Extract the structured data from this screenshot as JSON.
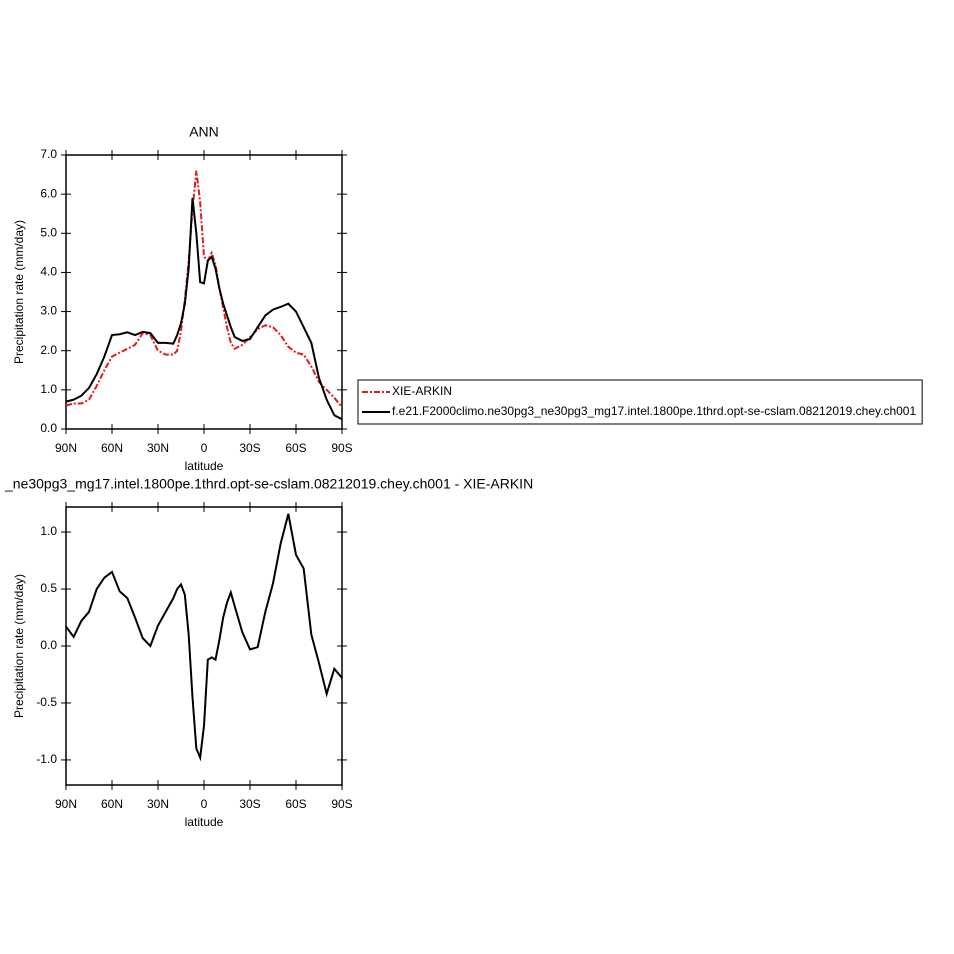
{
  "chart_data": [
    {
      "type": "line",
      "title": "ANN",
      "xlabel": "latitude",
      "ylabel": "Precipitation rate (mm/day)",
      "x": [
        90,
        85,
        80,
        75,
        70,
        65,
        60,
        55,
        50,
        45,
        40,
        35,
        30,
        25,
        20,
        17.5,
        15,
        12.5,
        10,
        7.5,
        5,
        2.5,
        0,
        -2.5,
        -5,
        -7.5,
        -10,
        -12.5,
        -15,
        -17.5,
        -20,
        -25,
        -30,
        -35,
        -40,
        -45,
        -50,
        -55,
        -60,
        -65,
        -70,
        -75,
        -80,
        -85,
        -90
      ],
      "series": [
        {
          "name": "XIE-ARKIN",
          "color": "#e41a1c",
          "line_style": "dashdot",
          "values": [
            0.6,
            0.65,
            0.65,
            0.75,
            1.1,
            1.5,
            1.85,
            1.95,
            2.05,
            2.15,
            2.45,
            2.4,
            2.0,
            1.9,
            1.9,
            2.0,
            2.5,
            3.3,
            4.3,
            5.6,
            6.6,
            5.8,
            4.4,
            4.3,
            4.5,
            4.2,
            3.6,
            3.1,
            2.6,
            2.2,
            2.05,
            2.15,
            2.35,
            2.55,
            2.65,
            2.6,
            2.4,
            2.1,
            1.95,
            1.9,
            1.6,
            1.2,
            1.0,
            0.8,
            0.55
          ]
        },
        {
          "name": "f.e21.F2000climo.ne30pg3_ne30pg3_mg17.intel.1800pe.1thrd.opt-se-cslam.08212019.chey.ch001",
          "color": "#000000",
          "line_style": "solid",
          "values": [
            0.7,
            0.75,
            0.85,
            1.05,
            1.4,
            1.85,
            2.4,
            2.42,
            2.47,
            2.4,
            2.48,
            2.45,
            2.2,
            2.2,
            2.18,
            2.4,
            2.7,
            3.2,
            4.1,
            5.9,
            5.0,
            3.75,
            3.72,
            4.3,
            4.4,
            4.1,
            3.6,
            3.2,
            2.9,
            2.6,
            2.35,
            2.25,
            2.3,
            2.6,
            2.9,
            3.05,
            3.12,
            3.2,
            3.0,
            2.6,
            2.2,
            1.3,
            0.75,
            0.35,
            0.25
          ]
        }
      ],
      "xlim": [
        90,
        -90
      ],
      "xticks": [
        {
          "value": 90,
          "label": "90N"
        },
        {
          "value": 60,
          "label": "60N"
        },
        {
          "value": 30,
          "label": "30N"
        },
        0,
        {
          "value": -30,
          "label": "30S"
        },
        {
          "value": -60,
          "label": "60S"
        },
        {
          "value": -90,
          "label": "90S"
        }
      ],
      "ylim": [
        0,
        7
      ],
      "yticks": [
        {
          "value": 0,
          "label": "0.0"
        },
        {
          "value": 1,
          "label": "1.0"
        },
        {
          "value": 2,
          "label": "2.0"
        },
        {
          "value": 3,
          "label": "3.0"
        },
        {
          "value": 4,
          "label": "4.0"
        },
        {
          "value": 5,
          "label": "5.0"
        },
        {
          "value": 6,
          "label": "6.0"
        },
        {
          "value": 7,
          "label": "7.0"
        }
      ],
      "legend": "right"
    },
    {
      "type": "line",
      "title": "_ne30pg3_mg17.intel.1800pe.1thrd.opt-se-cslam.08212019.chey.ch001 - XIE-ARKIN",
      "xlabel": "latitude",
      "ylabel": "Precipitation rate (mm/day)",
      "x": [
        90,
        85,
        80,
        75,
        70,
        65,
        60,
        55,
        50,
        45,
        40,
        35,
        30,
        25,
        20,
        17.5,
        15,
        12.5,
        10,
        7.5,
        5,
        2.5,
        0,
        -2.5,
        -5,
        -7.5,
        -10,
        -12.5,
        -15,
        -17.5,
        -20,
        -25,
        -30,
        -35,
        -40,
        -45,
        -50,
        -55,
        -60,
        -65,
        -70,
        -75,
        -80,
        -85,
        -90
      ],
      "color": "#000000",
      "values": [
        0.17,
        0.08,
        0.22,
        0.3,
        0.5,
        0.6,
        0.65,
        0.48,
        0.42,
        0.25,
        0.07,
        0.0,
        0.18,
        0.3,
        0.42,
        0.5,
        0.54,
        0.45,
        0.1,
        -0.45,
        -0.9,
        -0.98,
        -0.7,
        -0.12,
        -0.1,
        -0.12,
        0.05,
        0.25,
        0.38,
        0.47,
        0.35,
        0.12,
        -0.03,
        -0.01,
        0.3,
        0.55,
        0.9,
        1.16,
        0.8,
        0.68,
        0.1,
        -0.15,
        -0.42,
        -0.2,
        -0.28
      ],
      "xlim": [
        90,
        -90
      ],
      "xticks": [
        {
          "value": 90,
          "label": "90N"
        },
        {
          "value": 60,
          "label": "60N"
        },
        {
          "value": 30,
          "label": "30N"
        },
        0,
        {
          "value": -30,
          "label": "30S"
        },
        {
          "value": -60,
          "label": "60S"
        },
        {
          "value": -90,
          "label": "90S"
        }
      ],
      "ylim": [
        -1.22,
        1.22
      ],
      "yticks": [
        {
          "value": -1,
          "label": "-1.0"
        },
        {
          "value": -0.5,
          "label": "-0.5"
        },
        {
          "value": 0,
          "label": "0.0"
        },
        {
          "value": 0.5,
          "label": "0.5"
        },
        {
          "value": 1,
          "label": "1.0"
        }
      ]
    }
  ]
}
